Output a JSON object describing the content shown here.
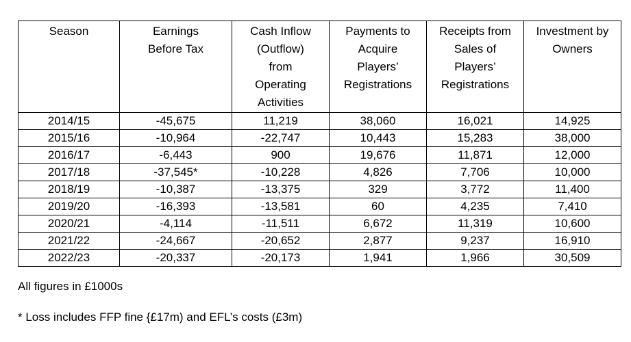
{
  "table": {
    "headers": [
      [
        "Season"
      ],
      [
        "Earnings",
        "Before Tax"
      ],
      [
        "Cash Inflow",
        "(Outflow)",
        "from",
        "Operating",
        "Activities"
      ],
      [
        "Payments to",
        "Acquire",
        "Players’",
        "Registrations"
      ],
      [
        "Receipts from",
        "Sales of",
        "Players’",
        "Registrations"
      ],
      [
        "Investment by",
        "Owners"
      ]
    ],
    "rows": [
      [
        "2014/15",
        "-45,675",
        "11,219",
        "38,060",
        "16,021",
        "14,925"
      ],
      [
        "2015/16",
        "-10,964",
        "-22,747",
        "10,443",
        "15,283",
        "38,000"
      ],
      [
        "2016/17",
        "-6,443",
        "900",
        "19,676",
        "11,871",
        "12,000"
      ],
      [
        "2017/18",
        "-37,545*",
        "-10,228",
        "4,826",
        "7,706",
        "10,000"
      ],
      [
        "2018/19",
        "-10,387",
        "-13,375",
        "329",
        "3,772",
        "11,400"
      ],
      [
        "2019/20",
        "-16,393",
        "-13,581",
        "60",
        "4,235",
        "7,410"
      ],
      [
        "2020/21",
        "-4,114",
        "-11,511",
        "6,672",
        "11,319",
        "10,600"
      ],
      [
        "2021/22",
        "-24,667",
        "-20,652",
        "2,877",
        "9,237",
        "16,910"
      ],
      [
        "2022/23",
        "-20,337",
        "-20,173",
        "1,941",
        "1,966",
        "30,509"
      ]
    ]
  },
  "notes": {
    "units": "All figures in £1000s",
    "footnote": "* Loss includes FFP fine {£17m) and EFL’s costs (£3m)"
  }
}
